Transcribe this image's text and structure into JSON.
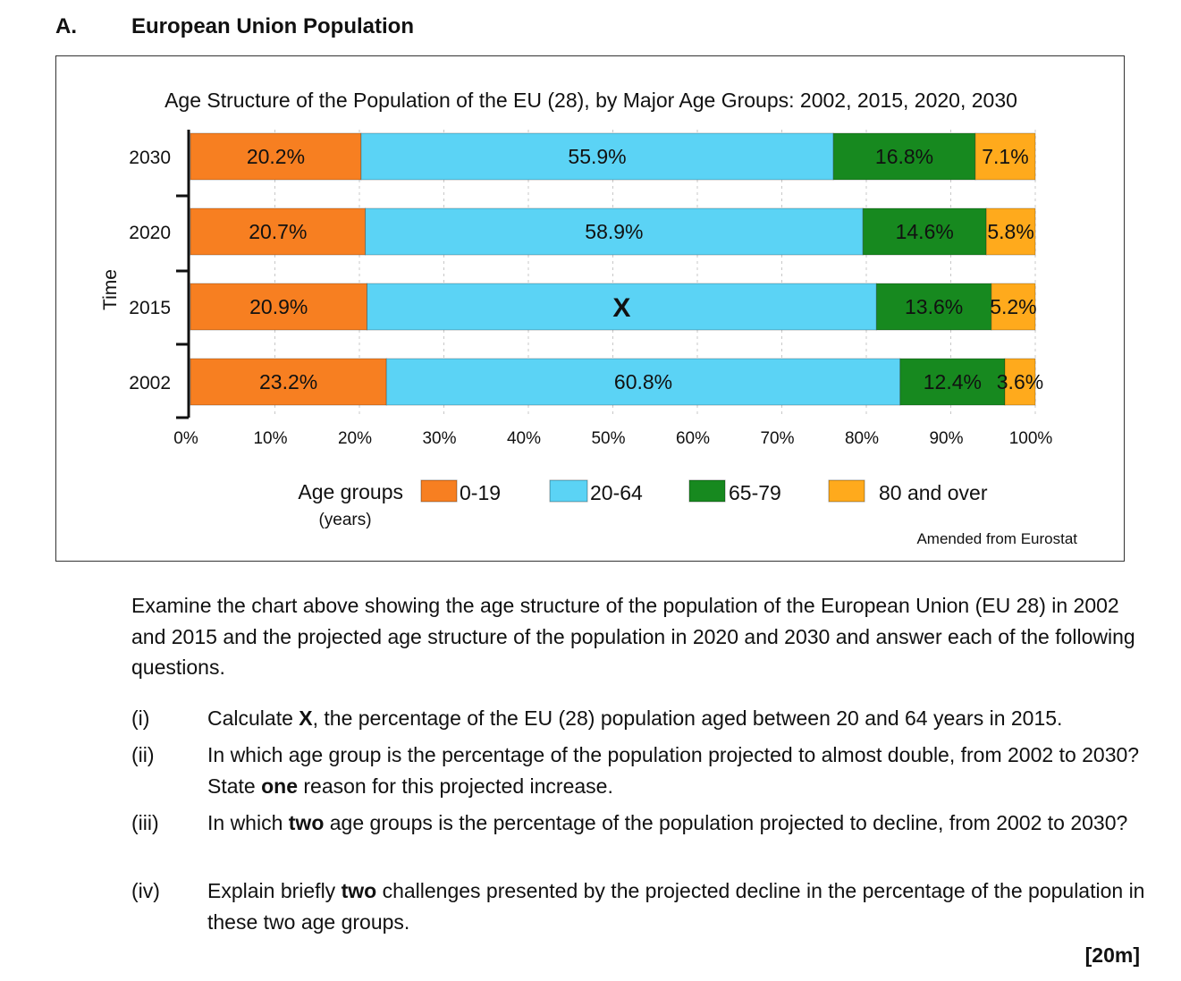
{
  "section": {
    "letter": "A.",
    "title": "European Union Population"
  },
  "chart_data": {
    "type": "bar",
    "orientation": "horizontal",
    "stacked": true,
    "title": "Age Structure of the Population of the EU (28), by Major Age Groups: 2002, 2015, 2020, 2030",
    "ylabel": "Time",
    "xlabel": "",
    "categories": [
      "2030",
      "2020",
      "2015",
      "2002"
    ],
    "series": [
      {
        "name": "0-19",
        "color": "#f77f21",
        "values": [
          20.2,
          20.7,
          20.9,
          23.2
        ],
        "labels": [
          "20.2%",
          "20.7%",
          "20.9%",
          "23.2%"
        ]
      },
      {
        "name": "20-64",
        "color": "#5bd3f5",
        "values": [
          55.9,
          58.9,
          60.3,
          60.8
        ],
        "labels": [
          "55.9%",
          "58.9%",
          "X",
          "60.8%"
        ]
      },
      {
        "name": "65-79",
        "color": "#17891f",
        "values": [
          16.8,
          14.6,
          13.6,
          12.4
        ],
        "labels": [
          "16.8%",
          "14.6%",
          "13.6%",
          "12.4%"
        ]
      },
      {
        "name": "80 and over",
        "color": "#ffaa1c",
        "values": [
          7.1,
          5.8,
          5.2,
          3.6
        ],
        "labels": [
          "7.1%",
          "5.8%",
          "5.2%",
          "3.6%"
        ]
      }
    ],
    "xlim": [
      0,
      100
    ],
    "xticks": [
      "0%",
      "10%",
      "20%",
      "30%",
      "40%",
      "50%",
      "60%",
      "70%",
      "80%",
      "90%",
      "100%"
    ],
    "legend_title": "Age groups",
    "legend_subtitle": "(years)",
    "legend_position": "bottom",
    "source": "Amended from Eurostat"
  },
  "intro": "Examine the chart above showing the age structure of the population of the European Union (EU 28) in 2002 and 2015 and the projected age structure of the population in 2020 and 2030 and answer each of the following questions.",
  "questions": [
    {
      "num": "(i)",
      "pre": "Calculate ",
      "bold": "X",
      "post": ", the percentage of the EU (28) population aged between 20 and 64 years in 2015."
    },
    {
      "num": "(ii)",
      "pre": "In which age group is the percentage of the population projected to almost double, from 2002 to 2030?  State ",
      "bold": "one",
      "post": " reason for this projected increase."
    },
    {
      "num": "(iii)",
      "pre": "In which ",
      "bold": "two",
      "post": " age groups is the percentage of the population projected to decline, from 2002 to 2030?"
    },
    {
      "num": "(iv)",
      "pre": "Explain briefly ",
      "bold": "two",
      "post": " challenges presented by the projected decline in the percentage of the population in these two age groups."
    }
  ],
  "marks": "[20m]"
}
